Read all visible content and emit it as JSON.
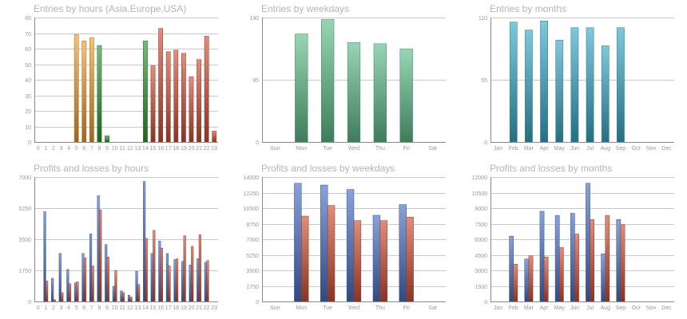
{
  "colors": {
    "orange": "#f0a030",
    "green": "#2e9a30",
    "red": "#d05038",
    "mint": "#5fbf8c",
    "teal": "#3aaac8",
    "blue": "#4a72c6",
    "lossred": "#d05038"
  },
  "chart_data": [
    {
      "type": "bar",
      "title": "Entries by hours (Asia,Europe,USA)",
      "categories": [
        "0",
        "1",
        "2",
        "3",
        "4",
        "5",
        "6",
        "7",
        "8",
        "9",
        "10",
        "11",
        "12",
        "13",
        "14",
        "15",
        "16",
        "17",
        "18",
        "19",
        "20",
        "21",
        "22",
        "23"
      ],
      "yticks": [
        "0",
        "10",
        "20",
        "30",
        "40",
        "50",
        "60",
        "70",
        "80"
      ],
      "ylim": [
        0,
        80
      ],
      "values": [
        0,
        0,
        0,
        0,
        0,
        69,
        65,
        67,
        62,
        4,
        0,
        0,
        0,
        0,
        65,
        49,
        73,
        58,
        59,
        57,
        42,
        53,
        68,
        7
      ],
      "bar_colors": [
        "orange",
        "orange",
        "orange",
        "orange",
        "orange",
        "orange",
        "orange",
        "orange",
        "green",
        "green",
        "green",
        "green",
        "green",
        "green",
        "green",
        "red",
        "red",
        "red",
        "red",
        "red",
        "red",
        "red",
        "red",
        "red"
      ],
      "grid": true
    },
    {
      "type": "bar",
      "title": "Entries by weekdays",
      "categories": [
        "Sun",
        "Mon",
        "Tue",
        "Wed",
        "Thu",
        "Fri",
        "Sat"
      ],
      "yticks": [
        "0",
        "95",
        "190"
      ],
      "ylim": [
        0,
        190
      ],
      "values": [
        0,
        165,
        187,
        152,
        150,
        142,
        0
      ],
      "color": "mint",
      "grid": true
    },
    {
      "type": "bar",
      "title": "Entries by months",
      "categories": [
        "Jan",
        "Feb",
        "Mar",
        "Apr",
        "May",
        "Jun",
        "Jul",
        "Aug",
        "Sep",
        "Oct",
        "Nov",
        "Dec"
      ],
      "yticks": [
        "0",
        "55",
        "110"
      ],
      "ylim": [
        0,
        110
      ],
      "values": [
        0,
        106,
        99,
        107,
        90,
        101,
        101,
        85,
        101,
        0,
        0,
        0
      ],
      "color": "teal",
      "grid": true
    },
    {
      "type": "bar",
      "title": "Profits and losses by hours",
      "categories": [
        "0",
        "1",
        "2",
        "3",
        "4",
        "5",
        "6",
        "7",
        "8",
        "9",
        "10",
        "11",
        "12",
        "13",
        "14",
        "15",
        "16",
        "17",
        "18",
        "19",
        "20",
        "21",
        "22",
        "23"
      ],
      "yticks": [
        "0",
        "1750",
        "3500",
        "5250",
        "7000"
      ],
      "ylim": [
        0,
        7000
      ],
      "series": [
        {
          "color": "blue",
          "values": [
            0,
            5050,
            1300,
            2700,
            1800,
            1050,
            2700,
            3800,
            5950,
            3200,
            850,
            600,
            350,
            1700,
            6750,
            2700,
            3400,
            2700,
            2350,
            2250,
            2050,
            2400,
            2200,
            0
          ]
        },
        {
          "color": "lossred",
          "values": [
            0,
            1150,
            100,
            500,
            1000,
            1100,
            2450,
            2000,
            5150,
            2500,
            1750,
            500,
            250,
            950,
            3550,
            4000,
            3000,
            2000,
            2400,
            3700,
            3100,
            3750,
            2300,
            0
          ]
        }
      ],
      "grid": true
    },
    {
      "type": "bar",
      "title": "Profits and losses by weekdays",
      "categories": [
        "Sun",
        "Mon",
        "Tue",
        "Wed",
        "Thu",
        "Fri",
        "Sat"
      ],
      "yticks": [
        "0",
        "1750",
        "3500",
        "5250",
        "7000",
        "8750",
        "10500",
        "12250",
        "14000"
      ],
      "ylim": [
        0,
        14000
      ],
      "series": [
        {
          "color": "blue",
          "values": [
            0,
            13300,
            13100,
            12600,
            9700,
            10900,
            0
          ]
        },
        {
          "color": "lossred",
          "values": [
            0,
            9600,
            10800,
            9100,
            9100,
            9500,
            0
          ]
        }
      ],
      "grid": true
    },
    {
      "type": "bar",
      "title": "Profits and losses by months",
      "categories": [
        "Jan",
        "Feb",
        "Mar",
        "Apr",
        "May",
        "Jun",
        "Jul",
        "Aug",
        "Sep",
        "Oct",
        "Nov",
        "Dec"
      ],
      "yticks": [
        "0",
        "1500",
        "3000",
        "4500",
        "6000",
        "7500",
        "9000",
        "10500",
        "12000"
      ],
      "ylim": [
        0,
        12000
      ],
      "series": [
        {
          "color": "blue",
          "values": [
            0,
            6300,
            4100,
            8700,
            8300,
            8500,
            11400,
            4600,
            7900,
            0,
            0,
            0
          ]
        },
        {
          "color": "lossred",
          "values": [
            0,
            3600,
            4400,
            4300,
            5200,
            6500,
            7900,
            8300,
            7400,
            0,
            0,
            0
          ]
        }
      ],
      "grid": true
    }
  ]
}
